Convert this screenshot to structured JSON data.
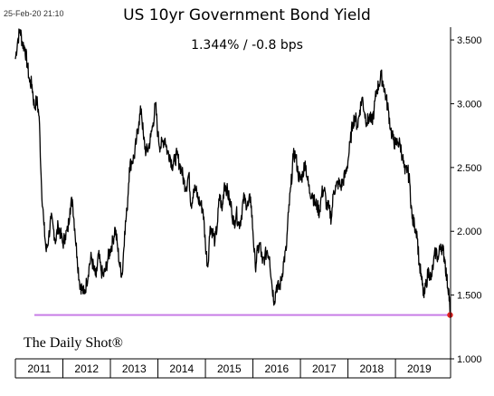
{
  "timestamp": "25-Feb-20 21:10",
  "logo": "The Daily Shot®",
  "chart_data": {
    "type": "line",
    "title": "US 10yr Government Bond Yield",
    "subtitle": "1.344%  /  -0.8 bps",
    "xlabel": "",
    "ylabel": "",
    "xlim": [
      2011.0,
      2020.16
    ],
    "ylim": [
      1.0,
      3.6
    ],
    "y_ticks": [
      "1.000",
      "1.500",
      "2.000",
      "2.500",
      "3.000",
      "3.500"
    ],
    "x_ticks": [
      "2011",
      "2012",
      "2013",
      "2014",
      "2015",
      "2016",
      "2017",
      "2018",
      "2019"
    ],
    "grid": false,
    "series": [
      {
        "color": "#000000",
        "x": [
          2011.0,
          2011.05,
          2011.1,
          2011.15,
          2011.2,
          2011.25,
          2011.3,
          2011.35,
          2011.4,
          2011.45,
          2011.5,
          2011.55,
          2011.6,
          2011.65,
          2011.7,
          2011.75,
          2011.8,
          2011.85,
          2011.9,
          2011.95,
          2012.0,
          2012.05,
          2012.1,
          2012.15,
          2012.2,
          2012.25,
          2012.3,
          2012.35,
          2012.4,
          2012.45,
          2012.5,
          2012.55,
          2012.6,
          2012.65,
          2012.7,
          2012.75,
          2012.8,
          2012.85,
          2012.9,
          2012.95,
          2013.0,
          2013.05,
          2013.1,
          2013.15,
          2013.2,
          2013.25,
          2013.3,
          2013.35,
          2013.4,
          2013.45,
          2013.5,
          2013.55,
          2013.6,
          2013.65,
          2013.7,
          2013.75,
          2013.8,
          2013.85,
          2013.9,
          2013.95,
          2014.0,
          2014.05,
          2014.1,
          2014.15,
          2014.2,
          2014.25,
          2014.3,
          2014.35,
          2014.4,
          2014.45,
          2014.5,
          2014.55,
          2014.6,
          2014.65,
          2014.7,
          2014.75,
          2014.8,
          2014.85,
          2014.9,
          2014.95,
          2015.0,
          2015.05,
          2015.1,
          2015.15,
          2015.2,
          2015.25,
          2015.3,
          2015.35,
          2015.4,
          2015.45,
          2015.5,
          2015.55,
          2015.6,
          2015.65,
          2015.7,
          2015.75,
          2015.8,
          2015.85,
          2015.9,
          2015.95,
          2016.0,
          2016.05,
          2016.1,
          2016.15,
          2016.2,
          2016.25,
          2016.3,
          2016.35,
          2016.4,
          2016.45,
          2016.5,
          2016.55,
          2016.6,
          2016.65,
          2016.7,
          2016.75,
          2016.8,
          2016.85,
          2016.9,
          2016.95,
          2017.0,
          2017.05,
          2017.1,
          2017.15,
          2017.2,
          2017.25,
          2017.3,
          2017.35,
          2017.4,
          2017.45,
          2017.5,
          2017.55,
          2017.6,
          2017.65,
          2017.7,
          2017.75,
          2017.8,
          2017.85,
          2017.9,
          2017.95,
          2018.0,
          2018.05,
          2018.1,
          2018.15,
          2018.2,
          2018.25,
          2018.3,
          2018.35,
          2018.4,
          2018.45,
          2018.5,
          2018.55,
          2018.6,
          2018.65,
          2018.7,
          2018.75,
          2018.8,
          2018.85,
          2018.9,
          2018.95,
          2019.0,
          2019.05,
          2019.1,
          2019.15,
          2019.2,
          2019.25,
          2019.3,
          2019.35,
          2019.4,
          2019.45,
          2019.5,
          2019.55,
          2019.6,
          2019.65,
          2019.7,
          2019.75,
          2019.8,
          2019.85,
          2019.9,
          2019.95,
          2020.0,
          2020.04,
          2020.08,
          2020.12,
          2020.15
        ],
        "values": [
          3.35,
          3.5,
          3.58,
          3.47,
          3.44,
          3.31,
          3.17,
          3.15,
          2.97,
          3.03,
          2.9,
          2.35,
          2.05,
          1.84,
          1.95,
          2.1,
          2.02,
          1.92,
          2.05,
          1.98,
          1.9,
          1.97,
          2.0,
          2.18,
          2.25,
          2.02,
          1.8,
          1.6,
          1.55,
          1.51,
          1.6,
          1.72,
          1.8,
          1.7,
          1.64,
          1.82,
          1.7,
          1.65,
          1.7,
          1.79,
          1.86,
          1.92,
          2.03,
          1.88,
          1.72,
          1.66,
          2.0,
          2.16,
          2.5,
          2.55,
          2.58,
          2.72,
          2.86,
          2.96,
          2.72,
          2.62,
          2.65,
          2.74,
          2.85,
          3.0,
          2.75,
          2.66,
          2.7,
          2.73,
          2.62,
          2.6,
          2.52,
          2.55,
          2.6,
          2.53,
          2.48,
          2.38,
          2.35,
          2.45,
          2.2,
          2.33,
          2.32,
          2.25,
          2.21,
          2.17,
          1.9,
          1.72,
          2.04,
          2.0,
          1.92,
          2.05,
          2.29,
          2.16,
          2.38,
          2.33,
          2.25,
          2.18,
          2.05,
          2.15,
          2.05,
          2.1,
          2.25,
          2.23,
          2.2,
          2.27,
          2.0,
          1.72,
          1.85,
          1.9,
          1.75,
          1.8,
          1.85,
          1.8,
          1.58,
          1.45,
          1.58,
          1.55,
          1.62,
          1.77,
          1.85,
          2.15,
          2.35,
          2.59,
          2.6,
          2.45,
          2.4,
          2.45,
          2.55,
          2.4,
          2.3,
          2.3,
          2.22,
          2.2,
          2.15,
          2.3,
          2.33,
          2.2,
          2.18,
          2.1,
          2.32,
          2.35,
          2.38,
          2.35,
          2.4,
          2.45,
          2.55,
          2.7,
          2.85,
          2.9,
          2.82,
          2.95,
          3.05,
          2.93,
          2.85,
          2.9,
          2.85,
          2.95,
          3.1,
          3.15,
          3.22,
          3.15,
          3.05,
          2.95,
          2.8,
          2.72,
          2.68,
          2.7,
          2.68,
          2.58,
          2.45,
          2.5,
          2.38,
          2.1,
          2.05,
          2.0,
          1.75,
          1.62,
          1.48,
          1.6,
          1.7,
          1.62,
          1.75,
          1.85,
          1.78,
          1.9,
          1.85,
          1.78,
          1.62,
          1.55,
          1.344
        ]
      }
    ],
    "support_line": {
      "value": 1.344,
      "from": 2011.4,
      "color": "#c87ee6"
    },
    "last_point": {
      "x": 2020.15,
      "value": 1.344,
      "color": "#e0201f"
    }
  }
}
